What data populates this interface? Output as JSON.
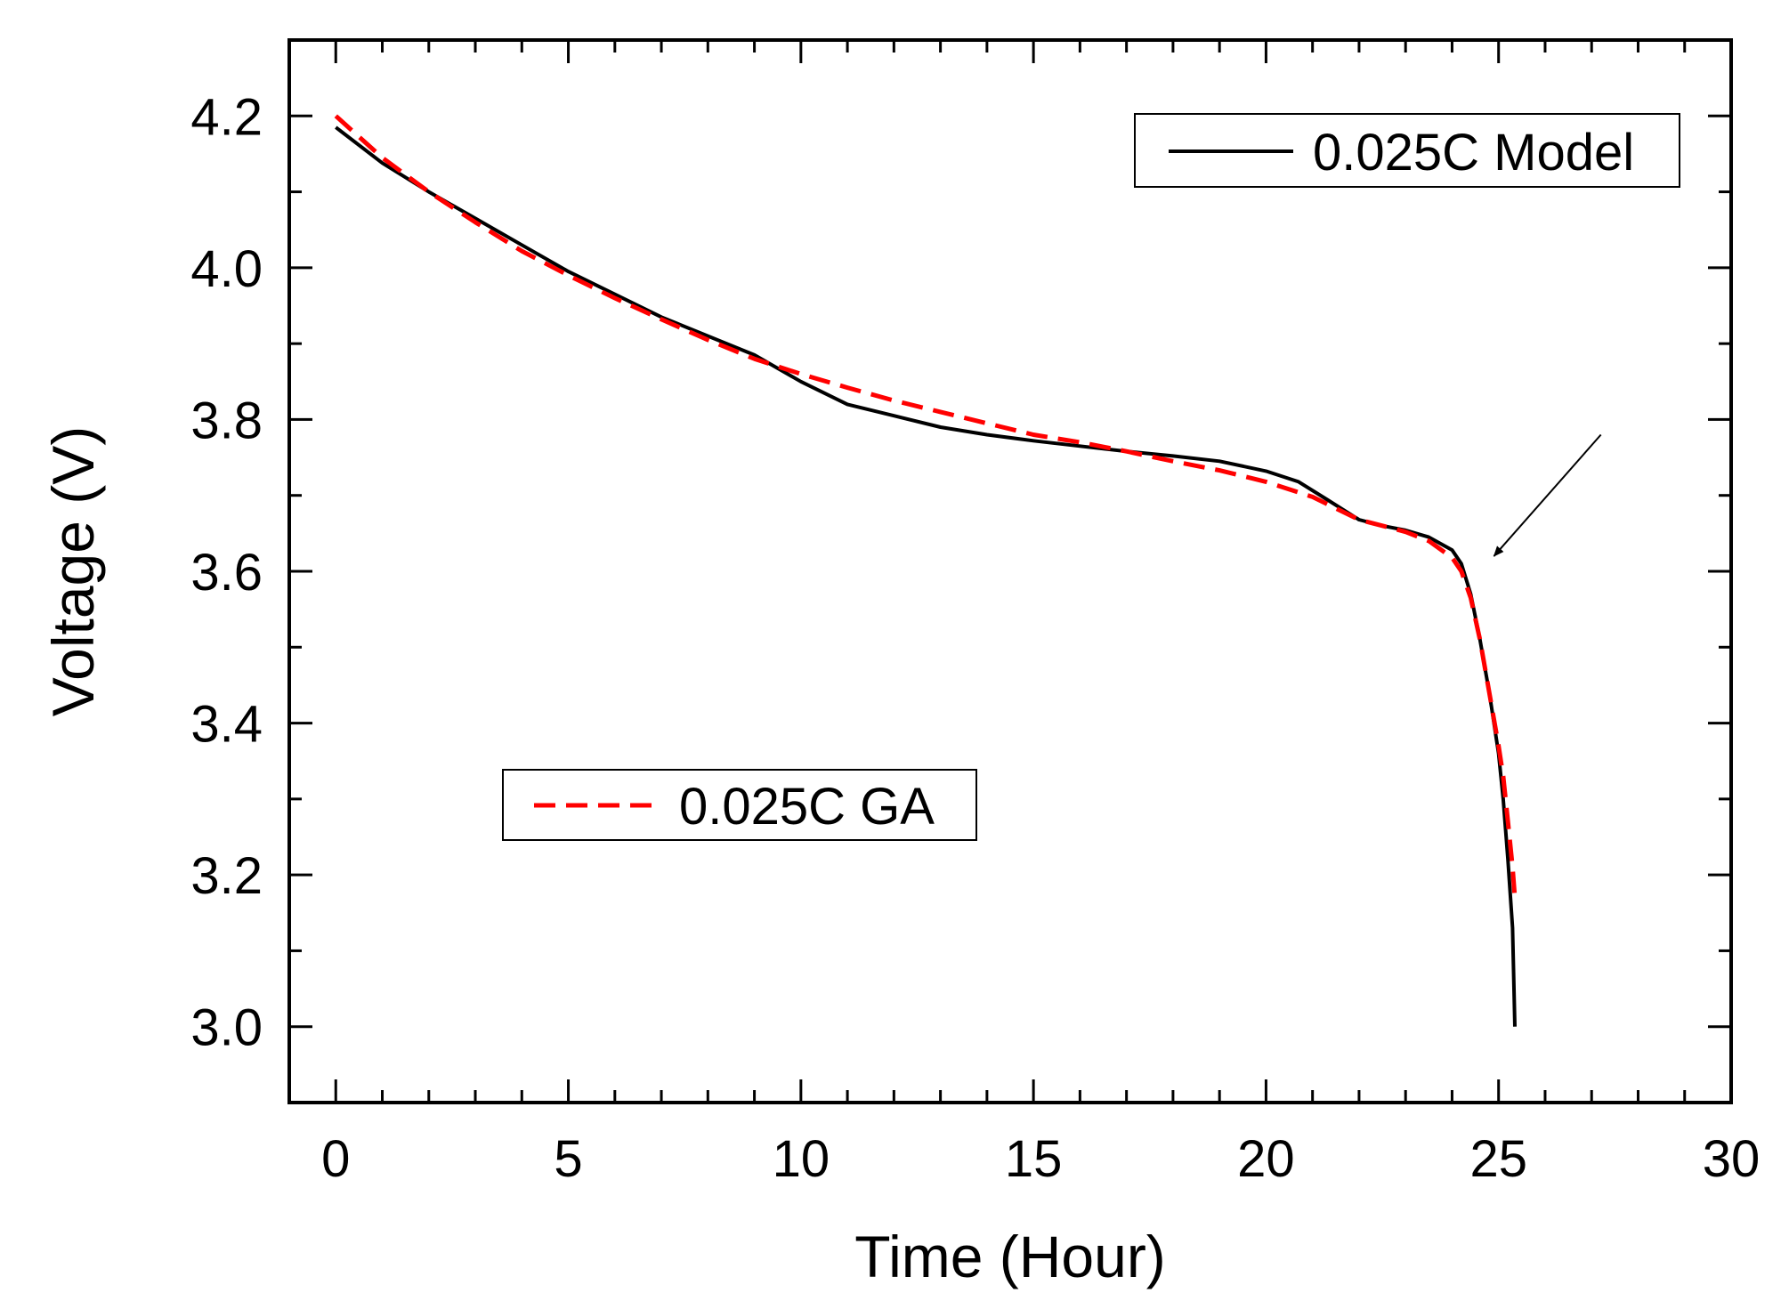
{
  "chart_data": {
    "type": "line",
    "xlabel": "Time (Hour)",
    "ylabel": "Voltage (V)",
    "xlim": [
      -1,
      30
    ],
    "ylim": [
      2.9,
      4.3
    ],
    "x_ticks": [
      0,
      5,
      10,
      15,
      20,
      25,
      30
    ],
    "y_ticks": [
      3.0,
      3.2,
      3.4,
      3.6,
      3.8,
      4.0,
      4.2
    ],
    "x_tick_labels": [
      "0",
      "5",
      "10",
      "15",
      "20",
      "25",
      "30"
    ],
    "y_tick_labels": [
      "3.0",
      "3.2",
      "3.4",
      "3.6",
      "3.8",
      "4.0",
      "4.2"
    ],
    "grid": false,
    "series": [
      {
        "name": "0.025C Model",
        "color": "#000000",
        "style": "solid",
        "legend_position": "top-right",
        "x": [
          0,
          1,
          2,
          3,
          4,
          5,
          6,
          7,
          8,
          9,
          10,
          11,
          12,
          13,
          14,
          15,
          16,
          17,
          18,
          19,
          20,
          20.7,
          21.3,
          22,
          22.5,
          23,
          23.5,
          24,
          24.2,
          24.4,
          24.6,
          24.8,
          25,
          25.1,
          25.2,
          25.3,
          25.35
        ],
        "y": [
          4.185,
          4.138,
          4.1,
          4.065,
          4.03,
          3.995,
          3.965,
          3.935,
          3.91,
          3.885,
          3.85,
          3.82,
          3.805,
          3.79,
          3.78,
          3.772,
          3.765,
          3.758,
          3.752,
          3.745,
          3.732,
          3.718,
          3.695,
          3.668,
          3.66,
          3.654,
          3.645,
          3.628,
          3.61,
          3.57,
          3.51,
          3.44,
          3.36,
          3.3,
          3.22,
          3.13,
          3.0
        ]
      },
      {
        "name": "0.025C GA",
        "color": "#ff0000",
        "style": "dashed",
        "legend_position": "bottom-left",
        "x": [
          0,
          1,
          2,
          3,
          4,
          5,
          6,
          7,
          8,
          9,
          10,
          11,
          12,
          13,
          14,
          15,
          16,
          17,
          18,
          19,
          20,
          21,
          22,
          22.5,
          23,
          23.5,
          24,
          24.2,
          24.4,
          24.6,
          24.8,
          25,
          25.1,
          25.2,
          25.3,
          25.35
        ],
        "y": [
          4.2,
          4.145,
          4.1,
          4.06,
          4.022,
          3.99,
          3.96,
          3.932,
          3.905,
          3.88,
          3.86,
          3.842,
          3.825,
          3.81,
          3.795,
          3.78,
          3.77,
          3.758,
          3.745,
          3.733,
          3.718,
          3.698,
          3.668,
          3.66,
          3.652,
          3.64,
          3.618,
          3.6,
          3.565,
          3.51,
          3.44,
          3.37,
          3.33,
          3.27,
          3.21,
          3.17
        ]
      }
    ],
    "annotations": [
      {
        "type": "arrow",
        "label": "",
        "from": [
          27.2,
          3.78
        ],
        "to": [
          24.9,
          3.62
        ]
      }
    ]
  }
}
